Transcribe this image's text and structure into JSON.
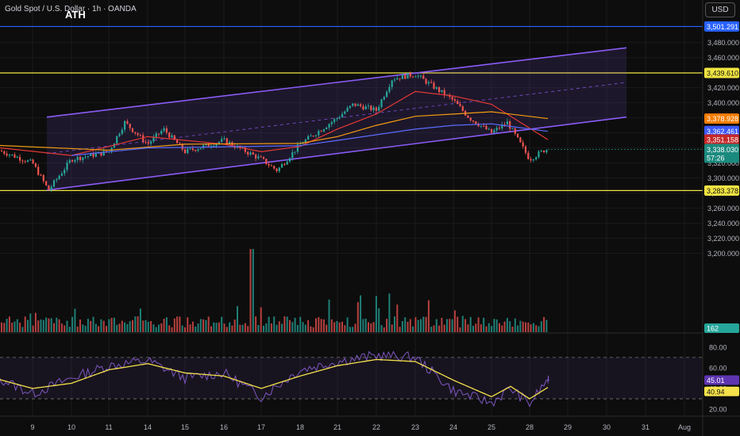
{
  "header": {
    "symbol_title": "Gold Spot / U.S. Dollar · 1h · OANDA",
    "annotation": "ATH",
    "currency_button": "USD"
  },
  "colors": {
    "background": "#0d0d0d",
    "up": "#26a69a",
    "down": "#ef5350",
    "channel": "#8b5cf6",
    "level_line": "#f0e442",
    "ath_line": "#2962ff",
    "ma_red": "#e53935",
    "ma_orange": "#f39c12",
    "ma_blue": "#5b6cff",
    "rsi_line": "#7e57c2",
    "rsi_signal": "#f5e14b"
  },
  "chart_data": [
    {
      "type": "candlestick",
      "title": "Gold Spot / U.S. Dollar · 1h · OANDA",
      "y_axis_ticks": [
        3480,
        3460,
        3440,
        3420,
        3400,
        3380,
        3360,
        3340,
        3320,
        3300,
        3280,
        3260,
        3240,
        3220,
        3200
      ],
      "y_axis_tick_labels": [
        "3,480.000",
        "3,460.000",
        "3,440.000",
        "3,420.000",
        "3,400.000",
        "3,380.000",
        "3,360.000",
        "3,340.000",
        "3,320.000",
        "3,300.000",
        "3,280.000",
        "3,260.000",
        "3,240.000",
        "3,220.000",
        "3,200.000"
      ],
      "ylim": [
        3189,
        3507
      ],
      "x_axis_labels": [
        "9",
        "10",
        "11",
        "14",
        "15",
        "16",
        "17",
        "18",
        "21",
        "22",
        "23",
        "24",
        "25",
        "28",
        "29",
        "30",
        "31",
        "Aug"
      ],
      "price_path": [
        {
          "x": "8",
          "y": 3343
        },
        {
          "x": "9",
          "y": 3320
        },
        {
          "x": "9",
          "y": 3284
        },
        {
          "x": "10",
          "y": 3325
        },
        {
          "x": "11",
          "y": 3335
        },
        {
          "x": "11",
          "y": 3374
        },
        {
          "x": "14",
          "y": 3345
        },
        {
          "x": "14",
          "y": 3365
        },
        {
          "x": "15",
          "y": 3335
        },
        {
          "x": "16",
          "y": 3350
        },
        {
          "x": "17",
          "y": 3325
        },
        {
          "x": "17",
          "y": 3310
        },
        {
          "x": "18",
          "y": 3345
        },
        {
          "x": "21",
          "y": 3380
        },
        {
          "x": "21",
          "y": 3398
        },
        {
          "x": "22",
          "y": 3390
        },
        {
          "x": "22",
          "y": 3432
        },
        {
          "x": "23",
          "y": 3438
        },
        {
          "x": "24",
          "y": 3403
        },
        {
          "x": "24",
          "y": 3380
        },
        {
          "x": "25",
          "y": 3360
        },
        {
          "x": "25",
          "y": 3374
        },
        {
          "x": "28",
          "y": 3325
        },
        {
          "x": "28",
          "y": 3338
        }
      ],
      "horizontal_levels": [
        {
          "value": 3501.291,
          "label": "3,501.291",
          "color": "#2962ff"
        },
        {
          "value": 3439.61,
          "label": "3,439.610",
          "color": "#f0e442"
        },
        {
          "value": 3283.378,
          "label": "3,283.378",
          "color": "#f0e442"
        }
      ],
      "price_tags": [
        {
          "value": 3378.928,
          "label": "3,378.928",
          "color": "#f57c00"
        },
        {
          "value": 3362.461,
          "label": "3,362.461",
          "color": "#3d5afe"
        },
        {
          "value": 3351.158,
          "label": "3,351.158",
          "color": "#c62828"
        },
        {
          "value": 3338.03,
          "label": "3,338.030",
          "sublabel": "57:26",
          "color": "#1b8a7e"
        }
      ],
      "channel": {
        "lower_start": {
          "x": "9",
          "y": 3284
        },
        "lower_end": {
          "x": "30",
          "y": 3381
        },
        "upper_start": {
          "x": "9",
          "y": 3381
        },
        "upper_end": {
          "x": "30",
          "y": 3473
        }
      },
      "moving_averages": [
        {
          "color": "#e53935",
          "points": [
            {
              "x": "8",
              "y": 3342
            },
            {
              "x": "10",
              "y": 3330
            },
            {
              "x": "11",
              "y": 3342
            },
            {
              "x": "14",
              "y": 3355
            },
            {
              "x": "16",
              "y": 3345
            },
            {
              "x": "17",
              "y": 3335
            },
            {
              "x": "18",
              "y": 3342
            },
            {
              "x": "21",
              "y": 3365
            },
            {
              "x": "22",
              "y": 3385
            },
            {
              "x": "23",
              "y": 3415
            },
            {
              "x": "24",
              "y": 3409
            },
            {
              "x": "25",
              "y": 3398
            },
            {
              "x": "28",
              "y": 3351
            }
          ]
        },
        {
          "color": "#f39c12",
          "points": [
            {
              "x": "8",
              "y": 3344
            },
            {
              "x": "11",
              "y": 3337
            },
            {
              "x": "15",
              "y": 3345
            },
            {
              "x": "18",
              "y": 3346
            },
            {
              "x": "21",
              "y": 3355
            },
            {
              "x": "22",
              "y": 3370
            },
            {
              "x": "23",
              "y": 3382
            },
            {
              "x": "24",
              "y": 3385
            },
            {
              "x": "25",
              "y": 3388
            },
            {
              "x": "28",
              "y": 3379
            }
          ]
        },
        {
          "color": "#5b6cff",
          "points": [
            {
              "x": "10",
              "y": 3330
            },
            {
              "x": "14",
              "y": 3340
            },
            {
              "x": "18",
              "y": 3343
            },
            {
              "x": "21",
              "y": 3350
            },
            {
              "x": "23",
              "y": 3365
            },
            {
              "x": "24",
              "y": 3370
            },
            {
              "x": "25",
              "y": 3372
            },
            {
              "x": "28",
              "y": 3362
            }
          ]
        }
      ]
    },
    {
      "type": "bar",
      "series": [
        {
          "name": "Volume",
          "last_value": 162,
          "last_label": "162"
        }
      ]
    },
    {
      "type": "line",
      "y_axis_ticks": [
        80,
        60,
        40,
        20
      ],
      "y_axis_tick_labels": [
        "80.00",
        "60.00",
        "40.00",
        "20.00"
      ],
      "ylim": [
        17,
        86
      ],
      "reference_lines": [
        70,
        30
      ],
      "series": [
        {
          "color": "#7e57c2",
          "last_value": 45.01,
          "last_label": "45.01",
          "points": [
            {
              "x": "8",
              "y": 55
            },
            {
              "x": "9",
              "y": 35
            },
            {
              "x": "10",
              "y": 50
            },
            {
              "x": "11",
              "y": 62
            },
            {
              "x": "14",
              "y": 67
            },
            {
              "x": "15",
              "y": 50
            },
            {
              "x": "16",
              "y": 55
            },
            {
              "x": "17",
              "y": 32
            },
            {
              "x": "18",
              "y": 58
            },
            {
              "x": "21",
              "y": 66
            },
            {
              "x": "22",
              "y": 72
            },
            {
              "x": "23",
              "y": 70
            },
            {
              "x": "24",
              "y": 38
            },
            {
              "x": "25",
              "y": 26
            },
            {
              "x": "25",
              "y": 40
            },
            {
              "x": "28",
              "y": 25
            },
            {
              "x": "28",
              "y": 50
            },
            {
              "x": "28",
              "y": 45
            }
          ]
        },
        {
          "color": "#f5e14b",
          "last_value": 40.94,
          "last_label": "40.94",
          "points": [
            {
              "x": "8",
              "y": 52
            },
            {
              "x": "9",
              "y": 40
            },
            {
              "x": "10",
              "y": 45
            },
            {
              "x": "11",
              "y": 58
            },
            {
              "x": "14",
              "y": 64
            },
            {
              "x": "15",
              "y": 55
            },
            {
              "x": "16",
              "y": 52
            },
            {
              "x": "17",
              "y": 40
            },
            {
              "x": "18",
              "y": 52
            },
            {
              "x": "21",
              "y": 62
            },
            {
              "x": "22",
              "y": 68
            },
            {
              "x": "23",
              "y": 66
            },
            {
              "x": "24",
              "y": 48
            },
            {
              "x": "25",
              "y": 32
            },
            {
              "x": "25",
              "y": 42
            },
            {
              "x": "28",
              "y": 30
            },
            {
              "x": "28",
              "y": 41
            }
          ]
        }
      ]
    }
  ]
}
